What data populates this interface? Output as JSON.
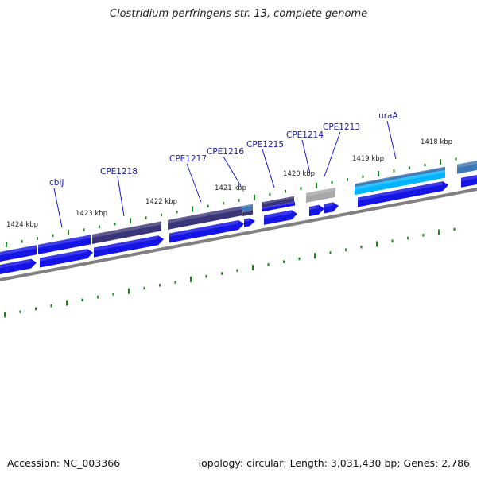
{
  "title": "Clostridium perfringens str. 13, complete genome",
  "footer": {
    "accession": "Accession: NC_003366",
    "summary": "Topology: circular; Length: 3,031,430 bp; Genes: 2,786"
  },
  "colors": {
    "cds": "#1414e6",
    "feature_dark": "#3a3579",
    "feature_light": "#00b4ff",
    "feature_gray": "#a8a8a8",
    "feature_steel": "#3d79b5",
    "backbone": "#808080",
    "tick": "#138a13",
    "label_line": "#1a1ad0",
    "label_text": "#1a1aa8"
  },
  "kbp_labels": [
    "1424 kbp",
    "1423 kbp",
    "1422 kbp",
    "1421 kbp",
    "1420 kbp",
    "1419 kbp",
    "1418 kbp"
  ],
  "gene_labels": [
    "cbiJ",
    "CPE1218",
    "CPE1217",
    "CPE1216",
    "CPE1215",
    "CPE1214",
    "CPE1213",
    "uraA"
  ]
}
